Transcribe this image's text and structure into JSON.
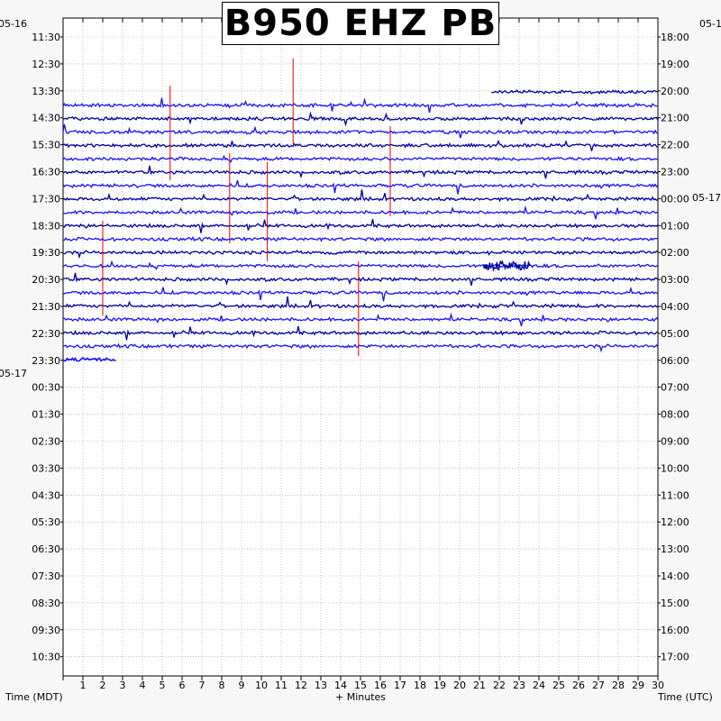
{
  "title": "B950 EHZ PB",
  "chart_data": {
    "type": "line",
    "title": "B950 EHZ PB",
    "xlabel": "+ Minutes",
    "left_axis_label": "Time (MDT)",
    "right_axis_label": "Time (UTC)",
    "xlim": [
      0,
      30
    ],
    "x_ticks": [
      "1",
      "2",
      "3",
      "4",
      "5",
      "6",
      "7",
      "8",
      "9",
      "10",
      "11",
      "12",
      "13",
      "14",
      "15",
      "16",
      "17",
      "18",
      "19",
      "20",
      "21",
      "22",
      "23",
      "24",
      "25",
      "26",
      "27",
      "28",
      "29",
      "30"
    ],
    "left_date_top": "05-16",
    "left_date_mid": "05-17",
    "right_date_top": "05-1",
    "right_date_mid": "05-17",
    "left_ticks": [
      "11:30",
      "12:30",
      "13:30",
      "14:30",
      "15:30",
      "16:30",
      "17:30",
      "18:30",
      "19:30",
      "20:30",
      "21:30",
      "22:30",
      "23:30",
      "00:30",
      "01:30",
      "02:30",
      "03:30",
      "04:30",
      "05:30",
      "06:30",
      "07:30",
      "08:30",
      "09:30",
      "10:30"
    ],
    "right_ticks": [
      "18:00",
      "19:00",
      "20:00",
      "21:00",
      "22:00",
      "23:00",
      "00:00",
      "01:00",
      "02:00",
      "03:00",
      "04:00",
      "05:00",
      "06:00",
      "07:00",
      "08:00",
      "09:00",
      "10:00",
      "11:00",
      "12:00",
      "13:00",
      "14:00",
      "15:00",
      "16:00",
      "17:00"
    ],
    "trace_colors": [
      "#0000a0",
      "#1414ff"
    ],
    "event_marker_color": "#e00000",
    "first_trace_start_minute": 21.6,
    "last_trace_end_minute": 2.7,
    "event_marker_minutes": [
      5.4,
      11.6,
      8.4,
      10.3,
      16.5,
      2.0,
      14.9
    ],
    "grid": "dotted"
  }
}
